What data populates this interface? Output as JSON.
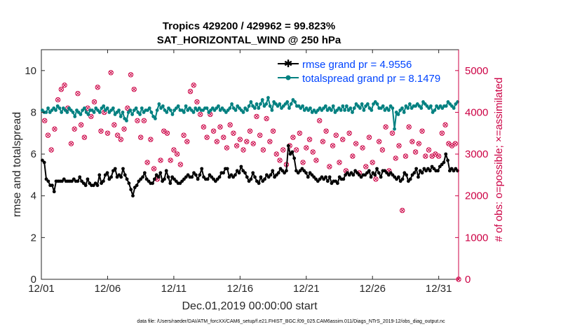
{
  "chart_data": {
    "type": "line",
    "title": "Tropics 429200 / 429962 = 99.823%",
    "subtitle": "SAT_HORIZONTAL_WIND @ 250 hPa",
    "xlabel": "Dec.01,2019 00:00:00 start",
    "ylabel": "rmse and totalspread",
    "ylabel_right": "# of obs: o=possible; ×=assimilated",
    "footer": "data file: /Users/raeder/DAI/ATM_forcXX/CAM6_setup/f.e21.FHIST_BGC.f09_025.CAM6assim.011/Diags_NTrS_2019-12/obs_diag_output.nc",
    "xlim": [
      0,
      31.5
    ],
    "ylim": [
      0,
      11
    ],
    "ylim_right": [
      0,
      5500
    ],
    "x_ticks": [
      0,
      5,
      10,
      15,
      20,
      25,
      30
    ],
    "x_tick_labels": [
      "12/01",
      "12/06",
      "12/11",
      "12/16",
      "12/21",
      "12/26",
      "12/31"
    ],
    "y_ticks": [
      0,
      2,
      4,
      6,
      8,
      10
    ],
    "y_tick_labels": [
      "0",
      "2",
      "4",
      "6",
      "8",
      "10"
    ],
    "y_ticks_right": [
      0,
      1000,
      2000,
      3000,
      4000,
      5000
    ],
    "y_tick_labels_right": [
      "0",
      "1000",
      "2000",
      "3000",
      "4000",
      "5000"
    ],
    "legend_position": "top-right",
    "series": [
      {
        "name": "rmse grand pr = 4.9556",
        "color": "#000000",
        "marker": "star",
        "values": [
          5.7,
          5.6,
          4.8,
          4.7,
          4.5,
          4.5,
          4.2,
          4.7,
          4.7,
          4.7,
          4.7,
          4.8,
          4.7,
          4.7,
          4.7,
          4.7,
          4.8,
          4.7,
          4.7,
          4.9,
          4.7,
          4.6,
          4.5,
          4.8,
          4.6,
          4.5,
          4.5,
          4.6,
          4.5,
          5.0,
          4.6,
          4.7,
          5.0,
          5.1,
          4.8,
          4.9,
          5.2,
          5.3,
          4.9,
          5.0,
          4.9,
          5.3,
          5.0,
          4.8,
          4.6,
          4.3,
          4.0,
          4.4,
          4.5,
          4.7,
          4.8,
          4.9,
          5.1,
          4.8,
          4.7,
          4.6,
          4.6,
          4.8,
          5.0,
          4.9,
          5.1,
          4.7,
          4.8,
          5.2,
          4.9,
          4.6,
          4.9,
          4.8,
          4.7,
          4.6,
          4.6,
          4.7,
          4.8,
          4.9,
          5.0,
          4.9,
          4.9,
          5.1,
          5.0,
          4.8,
          5.0,
          5.3,
          4.9,
          4.8,
          4.8,
          5.0,
          4.9,
          4.8,
          4.7,
          4.8,
          4.9,
          5.1,
          5.1,
          5.3,
          5.3,
          4.9,
          5.0,
          4.9,
          5.0,
          5.2,
          5.1,
          5.4,
          5.2,
          5.1,
          4.9,
          4.7,
          4.8,
          5.1,
          4.9,
          4.7,
          4.6,
          4.9,
          4.7,
          4.8,
          5.0,
          4.9,
          5.0,
          5.2,
          4.9,
          5.0,
          5.1,
          5.3,
          5.2,
          5.1,
          5.2,
          6.4,
          6.0,
          6.1,
          5.8,
          5.2,
          5.1,
          5.2,
          5.3,
          5.2,
          5.1,
          4.9,
          5.1,
          5.0,
          4.9,
          4.8,
          4.7,
          4.8,
          4.9,
          4.8,
          4.9,
          4.7,
          4.9,
          4.6,
          4.7,
          4.7,
          4.6,
          4.9,
          4.8,
          4.8,
          5.0,
          5.1,
          5.0,
          5.1,
          5.0,
          5.2,
          5.1,
          5.0,
          4.9,
          5.0,
          5.0,
          5.1,
          5.2,
          4.9,
          5.1,
          5.0,
          5.3,
          5.1,
          4.9,
          5.2,
          5.2,
          5.1,
          5.0,
          5.1,
          5.0,
          4.9,
          4.8,
          4.9,
          4.7,
          4.8,
          5.1,
          5.0,
          4.7,
          4.8,
          5.0,
          5.1,
          5.3,
          4.9,
          5.2,
          5.1,
          5.3,
          5.2,
          5.3,
          5.2,
          5.4,
          5.3,
          5.2,
          5.2,
          5.4,
          5.5,
          5.6,
          6.0,
          5.7,
          5.2,
          5.3,
          5.2,
          5.3,
          5.2
        ]
      },
      {
        "name": "totalspread grand pr = 8.1479",
        "color": "#008080",
        "marker": "circle",
        "values": [
          8.1,
          8.0,
          8.0,
          8.2,
          8.0,
          8.1,
          8.2,
          8.1,
          8.3,
          8.2,
          8.0,
          8.2,
          8.1,
          8.0,
          8.2,
          8.1,
          8.0,
          7.8,
          8.1,
          8.0,
          7.9,
          8.1,
          8.2,
          8.0,
          7.9,
          8.1,
          8.1,
          8.0,
          8.2,
          8.1,
          8.0,
          8.2,
          8.3,
          8.1,
          8.2,
          8.0,
          8.1,
          8.2,
          7.9,
          8.0,
          8.1,
          7.8,
          8.0,
          7.7,
          7.6,
          8.0,
          8.1,
          7.9,
          8.1,
          8.2,
          8.0,
          7.9,
          8.2,
          8.0,
          8.1,
          8.1,
          8.2,
          8.0,
          7.8,
          7.7,
          8.1,
          8.4,
          8.2,
          8.3,
          8.1,
          8.0,
          8.2,
          8.1,
          7.9,
          8.1,
          8.2,
          8.3,
          8.1,
          8.1,
          8.0,
          8.3,
          8.1,
          8.2,
          8.1,
          8.0,
          8.2,
          8.1,
          8.2,
          8.1,
          8.1,
          8.2,
          8.2,
          8.0,
          8.1,
          8.2,
          8.1,
          8.2,
          8.3,
          8.1,
          8.2,
          8.1,
          8.0,
          8.1,
          8.2,
          8.4,
          8.2,
          8.1,
          8.3,
          8.2,
          8.1,
          8.0,
          8.2,
          8.1,
          8.3,
          8.5,
          8.3,
          8.2,
          8.4,
          8.2,
          8.4,
          8.6,
          8.3,
          8.4,
          8.7,
          8.3,
          8.1,
          8.5,
          8.4,
          8.3,
          8.4,
          8.2,
          8.3,
          8.4,
          8.5,
          8.2,
          8.4,
          8.6,
          8.5,
          8.3,
          8.3,
          8.2,
          8.3,
          8.1,
          8.2,
          8.1,
          8.2,
          8.0,
          8.1,
          8.0,
          8.1,
          8.2,
          8.1,
          8.2,
          8.3,
          8.1,
          8.2,
          8.1,
          8.3,
          8.0,
          8.1,
          8.2,
          8.1,
          8.3,
          8.1,
          8.3,
          8.1,
          8.2,
          8.0,
          8.2,
          8.4,
          8.3,
          8.2,
          8.4,
          8.1,
          8.3,
          8.4,
          8.2,
          8.1,
          8.4,
          8.5,
          8.4,
          8.2,
          8.2,
          8.3,
          8.1,
          8.2,
          8.1,
          8.3,
          8.2,
          7.2,
          8.0,
          7.9,
          8.1,
          8.2,
          8.0,
          8.3,
          8.2,
          8.4,
          8.2,
          8.3,
          8.3,
          8.4,
          8.3,
          8.2,
          8.5,
          8.4,
          8.3,
          8.2,
          8.3,
          8.0,
          8.1,
          8.3,
          8.2,
          8.3,
          8.2,
          8.3,
          8.3,
          8.5,
          8.4,
          8.3,
          8.2,
          8.4,
          8.5
        ]
      }
    ],
    "obs_counts": [
      [
        0.25,
        3800
      ],
      [
        0.5,
        3450
      ],
      [
        0.75,
        3100
      ],
      [
        1.0,
        3600
      ],
      [
        1.25,
        4300
      ],
      [
        1.5,
        4550
      ],
      [
        1.75,
        4650
      ],
      [
        2.0,
        4100
      ],
      [
        2.25,
        3250
      ],
      [
        2.5,
        3600
      ],
      [
        2.75,
        4450
      ],
      [
        3.0,
        3700
      ],
      [
        3.25,
        3400
      ],
      [
        3.5,
        4100
      ],
      [
        3.75,
        3900
      ],
      [
        4.0,
        4250
      ],
      [
        4.25,
        4600
      ],
      [
        4.5,
        3550
      ],
      [
        4.75,
        4000
      ],
      [
        5.0,
        3500
      ],
      [
        5.25,
        4950
      ],
      [
        5.5,
        3700
      ],
      [
        5.75,
        3450
      ],
      [
        6.0,
        3350
      ],
      [
        6.25,
        3600
      ],
      [
        6.5,
        4100
      ],
      [
        6.75,
        4900
      ],
      [
        7.0,
        4550
      ],
      [
        7.25,
        3800
      ],
      [
        7.5,
        3400
      ],
      [
        7.75,
        3800
      ],
      [
        8.0,
        2800
      ],
      [
        8.25,
        3350
      ],
      [
        8.5,
        2650
      ],
      [
        8.75,
        2400
      ],
      [
        9.0,
        2850
      ],
      [
        9.25,
        3550
      ],
      [
        9.5,
        3500
      ],
      [
        9.75,
        2850
      ],
      [
        10.0,
        3100
      ],
      [
        10.25,
        3000
      ],
      [
        10.5,
        2750
      ],
      [
        10.75,
        3450
      ],
      [
        11.0,
        3300
      ],
      [
        11.25,
        4500
      ],
      [
        11.5,
        4650
      ],
      [
        11.75,
        4250
      ],
      [
        12.0,
        3950
      ],
      [
        12.25,
        3650
      ],
      [
        12.5,
        3400
      ],
      [
        12.75,
        3950
      ],
      [
        13.0,
        3550
      ],
      [
        13.25,
        3300
      ],
      [
        13.5,
        3650
      ],
      [
        13.75,
        3400
      ],
      [
        14.0,
        3150
      ],
      [
        14.25,
        3700
      ],
      [
        14.5,
        3500
      ],
      [
        14.75,
        3200
      ],
      [
        15.0,
        3350
      ],
      [
        15.25,
        3100
      ],
      [
        15.5,
        3300
      ],
      [
        15.75,
        3550
      ],
      [
        16.0,
        3250
      ],
      [
        16.25,
        3900
      ],
      [
        16.5,
        3450
      ],
      [
        16.75,
        3100
      ],
      [
        17.0,
        3850
      ],
      [
        17.25,
        3300
      ],
      [
        17.5,
        3550
      ],
      [
        17.75,
        3000
      ],
      [
        18.0,
        2850
      ],
      [
        18.25,
        3100
      ],
      [
        18.5,
        2750
      ],
      [
        18.75,
        3200
      ],
      [
        19.0,
        3400
      ],
      [
        19.25,
        3100
      ],
      [
        19.5,
        3500
      ],
      [
        19.75,
        2800
      ],
      [
        20.0,
        3150
      ],
      [
        20.25,
        3350
      ],
      [
        20.5,
        3050
      ],
      [
        20.75,
        2850
      ],
      [
        21.0,
        3800
      ],
      [
        21.25,
        3300
      ],
      [
        21.5,
        3550
      ],
      [
        21.75,
        2700
      ],
      [
        22.0,
        3200
      ],
      [
        22.25,
        3450
      ],
      [
        22.5,
        2800
      ],
      [
        22.75,
        3350
      ],
      [
        23.0,
        2600
      ],
      [
        23.25,
        3500
      ],
      [
        23.5,
        2950
      ],
      [
        23.75,
        3250
      ],
      [
        24.0,
        2550
      ],
      [
        24.25,
        3150
      ],
      [
        24.5,
        2700
      ],
      [
        24.75,
        3400
      ],
      [
        25.0,
        2800
      ],
      [
        25.25,
        2400
      ],
      [
        25.5,
        3300
      ],
      [
        25.75,
        3100
      ],
      [
        26.0,
        3650
      ],
      [
        26.25,
        2600
      ],
      [
        26.5,
        3500
      ],
      [
        26.75,
        2900
      ],
      [
        27.0,
        3200
      ],
      [
        27.25,
        1650
      ],
      [
        27.5,
        2950
      ],
      [
        27.75,
        3650
      ],
      [
        28.0,
        3300
      ],
      [
        28.25,
        3050
      ],
      [
        28.5,
        3250
      ],
      [
        28.75,
        3550
      ],
      [
        29.0,
        2950
      ],
      [
        29.25,
        3100
      ],
      [
        29.5,
        2950
      ],
      [
        29.75,
        3000
      ],
      [
        30.0,
        2950
      ],
      [
        30.25,
        3500
      ],
      [
        30.5,
        3700
      ],
      [
        30.75,
        3250
      ],
      [
        31.0,
        3200
      ],
      [
        31.25,
        3250
      ],
      [
        31.5,
        0
      ]
    ]
  }
}
